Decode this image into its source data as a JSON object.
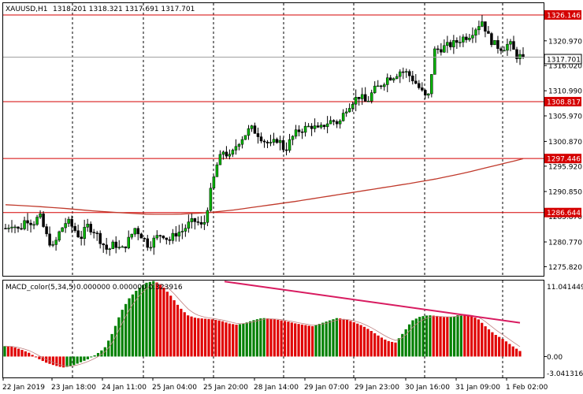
{
  "header": {
    "symbol_label": "XAUUSD,H1",
    "ohlc": "1318.201  1318.321  1317.691  1317.701"
  },
  "macd": {
    "label": "MACD_color(5,34,5)",
    "values": "0.000000  0.000000  0.323916",
    "top_label": "11.041449",
    "zero_label": "0.00",
    "bottom_label": "-3.041316"
  },
  "price_scale": {
    "ticks": [
      "1320.970",
      "1316.020",
      "1310.990",
      "1305.970",
      "1300.870",
      "1295.920",
      "1290.850",
      "1285.870",
      "1280.770",
      "1275.820"
    ],
    "current_price": "1317.701"
  },
  "levels": [
    {
      "label": "1326.146",
      "value": 1326.146
    },
    {
      "label": "1308.817",
      "value": 1308.817
    },
    {
      "label": "1297.446",
      "value": 1297.446
    },
    {
      "label": "1286.644",
      "value": 1286.644
    }
  ],
  "time_axis": [
    "22 Jan 2019",
    "23 Jan 18:00",
    "24 Jan 11:00",
    "25 Jan 04:00",
    "25 Jan 20:00",
    "28 Jan 14:00",
    "29 Jan 07:00",
    "29 Jan 23:00",
    "30 Jan 16:00",
    "31 Jan 09:00",
    "1 Feb 02:00"
  ],
  "colors": {
    "level_line": "#d50000",
    "candle_body": "#00b400",
    "ma_line": "#c0392b",
    "macd_up": "#008000",
    "macd_down": "#e00000",
    "trend_line": "#d81b60",
    "price_label_bg": "#d50000"
  },
  "chart_data": {
    "type": "candlestick",
    "price_range": [
      1274,
      1328.5
    ],
    "close_path": [
      1283.5,
      1284.5,
      1283.0,
      1285.5,
      1284.5,
      1286.0,
      1282.0,
      1279.5,
      1283.0,
      1285.0,
      1283.5,
      1281.5,
      1284.0,
      1283.0,
      1281.0,
      1279.0,
      1280.5,
      1279.0,
      1281.0,
      1283.5,
      1282.0,
      1280.0,
      1281.5,
      1282.5,
      1281.0,
      1282.5,
      1283.0,
      1284.5,
      1285.0,
      1283.5,
      1290.0,
      1296.0,
      1299.0,
      1297.5,
      1300.5,
      1302.0,
      1303.5,
      1302.5,
      1301.0,
      1300.0,
      1301.5,
      1299.0,
      1301.5,
      1303.0,
      1303.5,
      1304.0,
      1303.0,
      1304.5,
      1305.0,
      1304.5,
      1307.5,
      1309.0,
      1310.0,
      1308.5,
      1311.0,
      1312.0,
      1313.5,
      1314.0,
      1315.0,
      1314.5,
      1313.0,
      1311.0,
      1309.0,
      1319.0,
      1319.5,
      1320.0,
      1320.5,
      1321.5,
      1322.0,
      1323.5,
      1325.0,
      1321.5,
      1320.0,
      1319.5,
      1320.5,
      1318.0,
      1317.7
    ],
    "ma_path": [
      1288.2,
      1287.9,
      1287.5,
      1287.0,
      1286.6,
      1286.3,
      1286.3,
      1286.6,
      1287.2,
      1288.0,
      1288.8,
      1289.7,
      1290.6,
      1291.5,
      1292.4,
      1293.4,
      1294.6,
      1296.0,
      1297.4
    ],
    "macd_path": [
      1.5,
      1.4,
      1.0,
      0.5,
      -0.3,
      -0.9,
      -1.3,
      -1.6,
      -1.4,
      -0.9,
      -0.4,
      0.3,
      1.2,
      3.5,
      6.5,
      8.5,
      9.8,
      10.7,
      11.0,
      10.2,
      8.8,
      7.2,
      6.0,
      5.6,
      5.5,
      5.4,
      5.2,
      4.8,
      4.6,
      4.9,
      5.3,
      5.6,
      5.5,
      5.3,
      5.1,
      4.8,
      4.6,
      4.4,
      4.8,
      5.2,
      5.6,
      5.4,
      5.0,
      4.5,
      3.8,
      3.0,
      2.3,
      2.0,
      3.5,
      5.2,
      5.8,
      6.0,
      5.9,
      5.7,
      5.8,
      6.2,
      6.0,
      5.4,
      4.2,
      3.2,
      2.5,
      1.6,
      0.8
    ],
    "trend_line": {
      "from": 10.9,
      "to": 4.9
    }
  }
}
